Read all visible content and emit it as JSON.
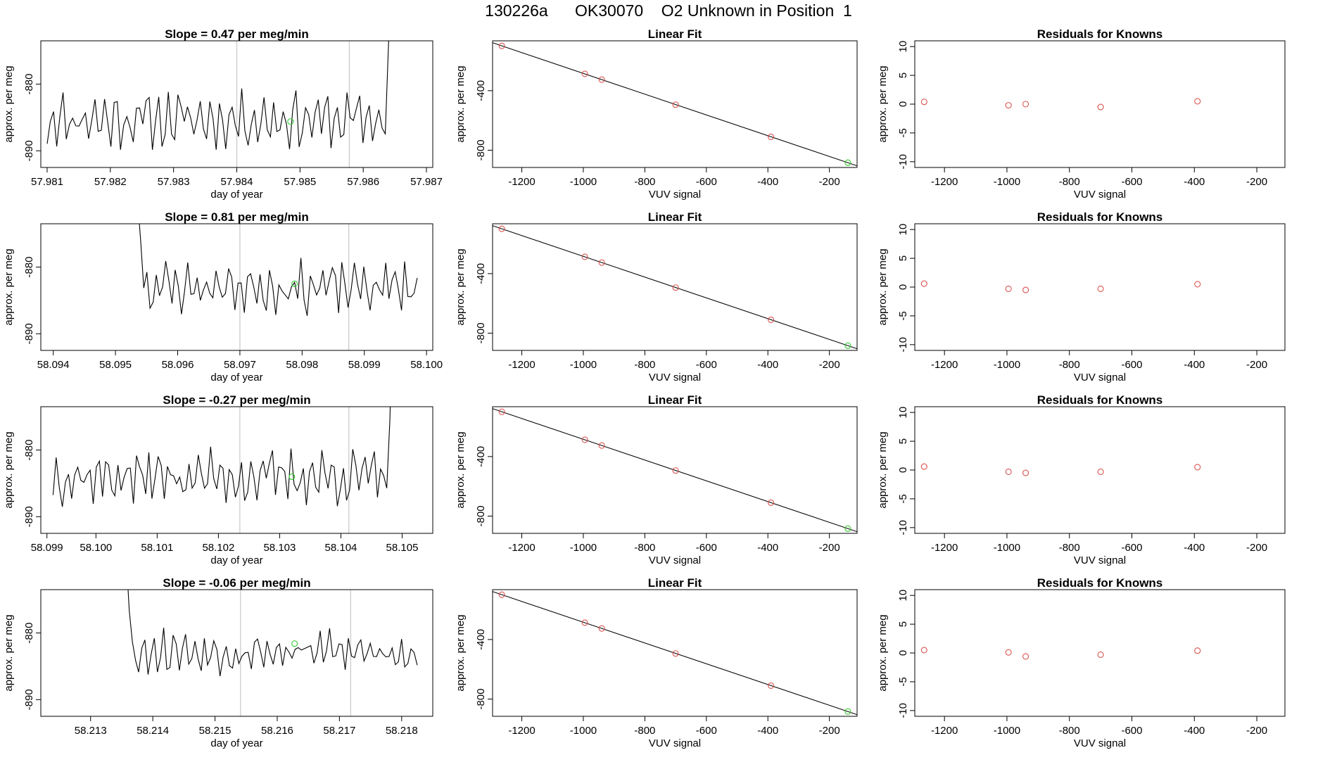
{
  "main_title": "130226a      OK30070    O2 Unknown in Position  1",
  "colors": {
    "known_point": "#d9534f",
    "unknown_point": "#33cc33",
    "series": "#000000",
    "marker_line": "#c8c8c8"
  },
  "chart_data": [
    {
      "type": "line",
      "row": 0,
      "panel": "time-series",
      "title": "Slope =  0.47  per meg/min",
      "xlabel": "day of year",
      "ylabel": "approx. per meg",
      "xlim": [
        57.9809,
        57.9871
      ],
      "ylim": [
        -892.5,
        -873.5
      ],
      "xticks": [
        57.981,
        57.982,
        57.983,
        57.984,
        57.985,
        57.986,
        57.987
      ],
      "xtick_labels": [
        "57.981",
        "57.982",
        "57.983",
        "57.984",
        "57.985",
        "57.986",
        "57.987"
      ],
      "yticks": [
        -880,
        -890
      ],
      "ytick_labels": [
        "-880",
        "-890"
      ],
      "x_start": 57.981,
      "x_end": 57.9865,
      "n_points": 110,
      "level": -885.3,
      "amplitude": 3.2,
      "spike_start": null,
      "spike_end": 57.98637,
      "seed": 11,
      "vlines": [
        57.984,
        57.98578
      ],
      "unknown_point": {
        "x": 57.98485,
        "y": -885.6
      }
    },
    {
      "type": "scatter",
      "row": 0,
      "panel": "linear-fit",
      "title": "Linear Fit",
      "xlabel": "VUV signal",
      "ylabel": "approx. per meg",
      "xlim": [
        -1295,
        -110
      ],
      "ylim": [
        -916,
        -65
      ],
      "xticks": [
        -1200,
        -1000,
        -800,
        -600,
        -400,
        -200
      ],
      "xtick_labels": [
        "-1200",
        "-1000",
        "-800",
        "-600",
        "-400",
        "-200"
      ],
      "yticks": [
        -400,
        -800
      ],
      "ytick_labels": [
        "-400",
        "-800"
      ],
      "fit_line": {
        "x": [
          -1265,
          -140
        ],
        "y": [
          -99,
          -884
        ]
      },
      "knowns": [
        {
          "x": -1265,
          "y": -99
        },
        {
          "x": -995,
          "y": -287
        },
        {
          "x": -940,
          "y": -326
        },
        {
          "x": -700,
          "y": -494
        },
        {
          "x": -390,
          "y": -710
        }
      ],
      "unknown": {
        "x": -140,
        "y": -884
      }
    },
    {
      "type": "scatter",
      "row": 0,
      "panel": "residuals",
      "title": "Residuals for Knowns",
      "xlabel": "VUV signal",
      "ylabel": "approx. per meg",
      "xlim": [
        -1295,
        -110
      ],
      "ylim": [
        -11,
        11
      ],
      "xticks": [
        -1200,
        -1000,
        -800,
        -600,
        -400,
        -200
      ],
      "xtick_labels": [
        "-1200",
        "-1000",
        "-800",
        "-600",
        "-400",
        "-200"
      ],
      "yticks": [
        10,
        5,
        0,
        -5,
        -10
      ],
      "ytick_labels": [
        "10",
        "5",
        "0",
        "-5",
        "-10"
      ],
      "residuals": [
        {
          "x": -1265,
          "y": 0.4
        },
        {
          "x": -995,
          "y": -0.2
        },
        {
          "x": -940,
          "y": 0.0
        },
        {
          "x": -700,
          "y": -0.5
        },
        {
          "x": -390,
          "y": 0.5
        }
      ]
    },
    {
      "type": "line",
      "row": 1,
      "panel": "time-series",
      "title": "Slope =  0.81  per meg/min",
      "xlabel": "day of year",
      "ylabel": "approx. per meg",
      "xlim": [
        58.0938,
        58.1001
      ],
      "ylim": [
        -892.5,
        -873.5
      ],
      "xticks": [
        58.094,
        58.095,
        58.096,
        58.097,
        58.098,
        58.099,
        58.1
      ],
      "xtick_labels": [
        "58.094",
        "58.095",
        "58.096",
        "58.097",
        "58.098",
        "58.099",
        "58.100"
      ],
      "yticks": [
        -880,
        -890
      ],
      "ytick_labels": [
        "-880",
        "-890"
      ],
      "x_start": 58.09505,
      "x_end": 58.09985,
      "n_points": 96,
      "level": -883.0,
      "amplitude": 3.0,
      "spike_start": 58.09545,
      "spike_end": null,
      "seed": 23,
      "vlines": [
        58.097,
        58.09875
      ],
      "unknown_point": {
        "x": 58.09788,
        "y": -882.5
      }
    },
    {
      "type": "scatter",
      "row": 1,
      "panel": "linear-fit",
      "title": "Linear Fit",
      "xlabel": "VUV signal",
      "ylabel": "approx. per meg",
      "xlim": [
        -1295,
        -110
      ],
      "ylim": [
        -916,
        -65
      ],
      "xticks": [
        -1200,
        -1000,
        -800,
        -600,
        -400,
        -200
      ],
      "xtick_labels": [
        "-1200",
        "-1000",
        "-800",
        "-600",
        "-400",
        "-200"
      ],
      "yticks": [
        -400,
        -800
      ],
      "ytick_labels": [
        "-400",
        "-800"
      ],
      "fit_line": {
        "x": [
          -1265,
          -140
        ],
        "y": [
          -99,
          -884
        ]
      },
      "knowns": [
        {
          "x": -1265,
          "y": -99
        },
        {
          "x": -995,
          "y": -287
        },
        {
          "x": -940,
          "y": -326
        },
        {
          "x": -700,
          "y": -494
        },
        {
          "x": -390,
          "y": -710
        }
      ],
      "unknown": {
        "x": -140,
        "y": -884
      }
    },
    {
      "type": "scatter",
      "row": 1,
      "panel": "residuals",
      "title": "Residuals for Knowns",
      "xlabel": "VUV signal",
      "ylabel": "approx. per meg",
      "xlim": [
        -1295,
        -110
      ],
      "ylim": [
        -11,
        11
      ],
      "xticks": [
        -1200,
        -1000,
        -800,
        -600,
        -400,
        -200
      ],
      "xtick_labels": [
        "-1200",
        "-1000",
        "-800",
        "-600",
        "-400",
        "-200"
      ],
      "yticks": [
        10,
        5,
        0,
        -5,
        -10
      ],
      "ytick_labels": [
        "10",
        "5",
        "0",
        "-5",
        "-10"
      ],
      "residuals": [
        {
          "x": -1265,
          "y": 0.6
        },
        {
          "x": -995,
          "y": -0.3
        },
        {
          "x": -940,
          "y": -0.5
        },
        {
          "x": -700,
          "y": -0.3
        },
        {
          "x": -390,
          "y": 0.5
        }
      ]
    },
    {
      "type": "line",
      "row": 2,
      "panel": "time-series",
      "title": "Slope =  -0.27  per meg/min",
      "xlabel": "day of year",
      "ylabel": "approx. per meg",
      "xlim": [
        58.0991,
        58.1055
      ],
      "ylim": [
        -892.5,
        -873.5
      ],
      "xticks": [
        58.0992,
        58.1,
        58.101,
        58.102,
        58.103,
        58.104,
        58.105
      ],
      "xtick_labels": [
        "58.099",
        "58.100",
        "58.101",
        "58.102",
        "58.103",
        "58.104",
        "58.105"
      ],
      "yticks": [
        -880,
        -890
      ],
      "ytick_labels": [
        "-880",
        "-890"
      ],
      "x_start": 58.0993,
      "x_end": 58.1049,
      "n_points": 112,
      "level": -884.0,
      "amplitude": 3.2,
      "spike_start": null,
      "spike_end": 58.10478,
      "seed": 37,
      "vlines": [
        58.10235,
        58.10413
      ],
      "unknown_point": {
        "x": 58.1032,
        "y": -884.0
      }
    },
    {
      "type": "scatter",
      "row": 2,
      "panel": "linear-fit",
      "title": "Linear Fit",
      "xlabel": "VUV signal",
      "ylabel": "approx. per meg",
      "xlim": [
        -1295,
        -110
      ],
      "ylim": [
        -916,
        -65
      ],
      "xticks": [
        -1200,
        -1000,
        -800,
        -600,
        -400,
        -200
      ],
      "xtick_labels": [
        "-1200",
        "-1000",
        "-800",
        "-600",
        "-400",
        "-200"
      ],
      "yticks": [
        -400,
        -800
      ],
      "ytick_labels": [
        "-400",
        "-800"
      ],
      "fit_line": {
        "x": [
          -1265,
          -140
        ],
        "y": [
          -99,
          -884
        ]
      },
      "knowns": [
        {
          "x": -1265,
          "y": -99
        },
        {
          "x": -995,
          "y": -287
        },
        {
          "x": -940,
          "y": -326
        },
        {
          "x": -700,
          "y": -494
        },
        {
          "x": -390,
          "y": -710
        }
      ],
      "unknown": {
        "x": -140,
        "y": -884
      }
    },
    {
      "type": "scatter",
      "row": 2,
      "panel": "residuals",
      "title": "Residuals for Knowns",
      "xlabel": "VUV signal",
      "ylabel": "approx. per meg",
      "xlim": [
        -1295,
        -110
      ],
      "ylim": [
        -11,
        11
      ],
      "xticks": [
        -1200,
        -1000,
        -800,
        -600,
        -400,
        -200
      ],
      "xtick_labels": [
        "-1200",
        "-1000",
        "-800",
        "-600",
        "-400",
        "-200"
      ],
      "yticks": [
        10,
        5,
        0,
        -5,
        -10
      ],
      "ytick_labels": [
        "10",
        "5",
        "0",
        "-5",
        "-10"
      ],
      "residuals": [
        {
          "x": -1265,
          "y": 0.6
        },
        {
          "x": -995,
          "y": -0.3
        },
        {
          "x": -940,
          "y": -0.5
        },
        {
          "x": -700,
          "y": -0.3
        },
        {
          "x": -390,
          "y": 0.5
        }
      ]
    },
    {
      "type": "line",
      "row": 3,
      "panel": "time-series",
      "title": "Slope =  -0.06  per meg/min",
      "xlabel": "day of year",
      "ylabel": "approx. per meg",
      "xlim": [
        58.2122,
        58.2185
      ],
      "ylim": [
        -892.5,
        -873.5
      ],
      "xticks": [
        58.213,
        58.214,
        58.215,
        58.216,
        58.217,
        58.218
      ],
      "xtick_labels": [
        "58.213",
        "58.214",
        "58.215",
        "58.216",
        "58.217",
        "58.218"
      ],
      "yticks": [
        -880,
        -890
      ],
      "ytick_labels": [
        "-880",
        "-890"
      ],
      "x_start": 58.21337,
      "x_end": 58.21825,
      "n_points": 98,
      "level": -882.8,
      "amplitude": 2.6,
      "spike_start": 58.21365,
      "spike_end": null,
      "seed": 53,
      "vlines": [
        58.21541,
        58.21718
      ],
      "unknown_point": {
        "x": 58.21628,
        "y": -881.6
      }
    },
    {
      "type": "scatter",
      "row": 3,
      "panel": "linear-fit",
      "title": "Linear Fit",
      "xlabel": "VUV signal",
      "ylabel": "approx. per meg",
      "xlim": [
        -1295,
        -110
      ],
      "ylim": [
        -916,
        -65
      ],
      "xticks": [
        -1200,
        -1000,
        -800,
        -600,
        -400,
        -200
      ],
      "xtick_labels": [
        "-1200",
        "-1000",
        "-800",
        "-600",
        "-400",
        "-200"
      ],
      "yticks": [
        -400,
        -800
      ],
      "ytick_labels": [
        "-400",
        "-800"
      ],
      "fit_line": {
        "x": [
          -1265,
          -140
        ],
        "y": [
          -99,
          -884
        ]
      },
      "knowns": [
        {
          "x": -1265,
          "y": -99
        },
        {
          "x": -995,
          "y": -287
        },
        {
          "x": -940,
          "y": -326
        },
        {
          "x": -700,
          "y": -494
        },
        {
          "x": -390,
          "y": -710
        }
      ],
      "unknown": {
        "x": -140,
        "y": -884
      }
    },
    {
      "type": "scatter",
      "row": 3,
      "panel": "residuals",
      "title": "Residuals for Knowns",
      "xlabel": "VUV signal",
      "ylabel": "approx. per meg",
      "xlim": [
        -1295,
        -110
      ],
      "ylim": [
        -11,
        11
      ],
      "xticks": [
        -1200,
        -1000,
        -800,
        -600,
        -400,
        -200
      ],
      "xtick_labels": [
        "-1200",
        "-1000",
        "-800",
        "-600",
        "-400",
        "-200"
      ],
      "yticks": [
        10,
        5,
        0,
        -5,
        -10
      ],
      "ytick_labels": [
        "10",
        "5",
        "0",
        "-5",
        "-10"
      ],
      "residuals": [
        {
          "x": -1265,
          "y": 0.5
        },
        {
          "x": -995,
          "y": 0.1
        },
        {
          "x": -940,
          "y": -0.6
        },
        {
          "x": -700,
          "y": -0.3
        },
        {
          "x": -390,
          "y": 0.4
        }
      ]
    }
  ]
}
